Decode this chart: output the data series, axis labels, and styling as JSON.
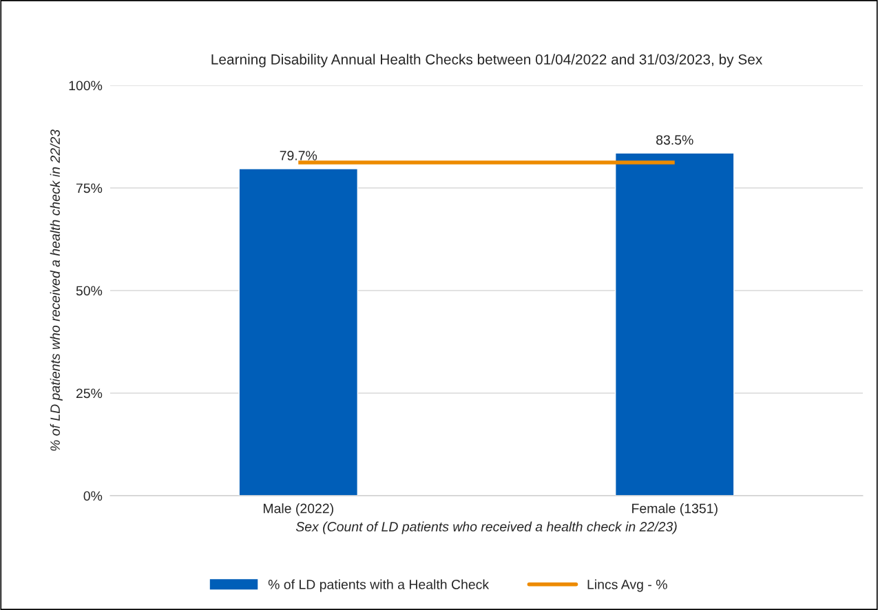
{
  "chart_data": {
    "type": "bar",
    "title": "Learning Disability Annual Health Checks between 01/04/2022 and 31/03/2023, by Sex",
    "xlabel": "Sex (Count of LD patients who received a health check in 22/23)",
    "ylabel": "% of LD patients who received a health check in 22/23",
    "categories": [
      "Male (2022)",
      "Female (1351)"
    ],
    "series": [
      {
        "name": "% of LD patients with a Health Check",
        "color": "#005eb8",
        "values": [
          79.7,
          83.5
        ],
        "value_labels": [
          "79.7%",
          "83.5%"
        ]
      },
      {
        "name": "Lincs Avg - %",
        "type": "line",
        "color": "#ed8b00",
        "values": [
          81.2,
          81.2
        ],
        "marker": "none"
      }
    ],
    "ylim": [
      0,
      100
    ],
    "yticks": [
      {
        "value": 0,
        "label": "0%"
      },
      {
        "value": 25,
        "label": "25%"
      },
      {
        "value": 50,
        "label": "50%"
      },
      {
        "value": 75,
        "label": "75%"
      },
      {
        "value": 100,
        "label": "100%"
      }
    ],
    "grid": "y",
    "legend": "bottom"
  }
}
